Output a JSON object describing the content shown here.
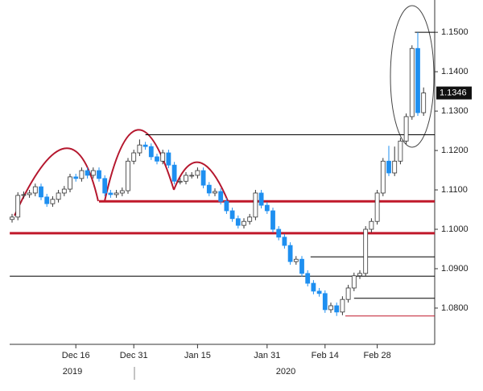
{
  "chart_data": {
    "type": "candlestick",
    "categories": [
      null,
      null,
      null,
      null,
      null,
      null,
      null,
      null,
      null,
      null,
      null,
      "Dec 16",
      null,
      null,
      null,
      null,
      null,
      null,
      null,
      null,
      null,
      "Dec 31",
      null,
      null,
      null,
      null,
      null,
      null,
      null,
      null,
      null,
      null,
      "Jan 15",
      null,
      null,
      null,
      null,
      null,
      null,
      null,
      null,
      null,
      null,
      null,
      "Jan 31",
      null,
      null,
      null,
      null,
      null,
      null,
      null,
      null,
      null,
      "Feb 14",
      null,
      null,
      null,
      null,
      null,
      null,
      null,
      null,
      "Feb 28",
      null,
      null,
      null,
      null,
      null,
      null,
      null,
      null
    ],
    "year_labels": [
      "2019",
      "2020"
    ],
    "open": [
      1.1025,
      1.1031,
      1.1086,
      1.1088,
      1.1092,
      1.1108,
      1.1082,
      1.1065,
      1.1076,
      1.1092,
      1.1102,
      1.1133,
      1.1129,
      1.1149,
      1.1137,
      1.1149,
      1.1129,
      1.1092,
      1.1088,
      1.1092,
      1.1098,
      1.1173,
      1.1194,
      1.1214,
      1.121,
      1.1184,
      1.1173,
      1.1194,
      1.1163,
      1.1122,
      1.1122,
      1.1137,
      1.1137,
      1.1149,
      1.1112,
      1.1092,
      1.1096,
      1.1071,
      1.1047,
      1.1027,
      1.101,
      1.102,
      1.1031,
      1.1092,
      1.1061,
      1.1047,
      1.1,
      1.098,
      1.0959,
      1.0918,
      1.0924,
      1.0888,
      1.0863,
      1.0843,
      1.0837,
      1.0796,
      1.0806,
      1.079,
      1.0822,
      1.0851,
      1.0882,
      1.0888,
      1.1,
      1.102,
      1.1092,
      1.1173,
      1.1143,
      1.1173,
      1.1224,
      1.1286,
      1.1459,
      1.1296
    ],
    "high": [
      1.1039,
      1.1094,
      1.1096,
      1.11,
      1.1116,
      1.1116,
      1.109,
      1.1084,
      1.11,
      1.111,
      1.1141,
      1.1141,
      1.1157,
      1.1157,
      1.1157,
      1.1157,
      1.1137,
      1.11,
      1.11,
      1.1106,
      1.1181,
      1.1202,
      1.1228,
      1.1222,
      1.1218,
      1.1192,
      1.1202,
      1.1202,
      1.1171,
      1.113,
      1.1145,
      1.1145,
      1.1157,
      1.1157,
      1.112,
      1.1104,
      1.1104,
      1.1079,
      1.1055,
      1.1035,
      1.1028,
      1.1039,
      1.11,
      1.11,
      1.1069,
      1.1055,
      1.1008,
      1.0988,
      1.0967,
      1.0932,
      1.0932,
      1.0896,
      1.0871,
      1.0851,
      1.0845,
      1.0814,
      1.0814,
      1.083,
      1.0859,
      1.089,
      1.0896,
      1.1008,
      1.1028,
      1.11,
      1.1181,
      1.1212,
      1.121,
      1.1232,
      1.1294,
      1.1467,
      1.15,
      1.136
    ],
    "low": [
      1.1017,
      1.1023,
      1.1078,
      1.108,
      1.1084,
      1.1074,
      1.1057,
      1.1057,
      1.1068,
      1.1084,
      1.1094,
      1.1121,
      1.1121,
      1.1129,
      1.1129,
      1.1121,
      1.1084,
      1.108,
      1.108,
      1.1084,
      1.109,
      1.1165,
      1.1186,
      1.1202,
      1.1176,
      1.1165,
      1.1165,
      1.1155,
      1.1114,
      1.1114,
      1.1114,
      1.1129,
      1.1129,
      1.1104,
      1.1084,
      1.1084,
      1.1063,
      1.1039,
      1.1019,
      1.1002,
      1.1002,
      1.1012,
      1.1023,
      1.1053,
      1.1039,
      1.0992,
      1.0972,
      1.0951,
      1.091,
      1.091,
      1.088,
      1.0855,
      1.0835,
      1.0829,
      1.0788,
      1.0788,
      1.078,
      1.0782,
      1.0814,
      1.0843,
      1.0874,
      1.088,
      1.0992,
      1.1012,
      1.1084,
      1.1135,
      1.1135,
      1.1165,
      1.1216,
      1.1278,
      1.1288,
      1.1288
    ],
    "close": [
      1.1031,
      1.1086,
      1.1088,
      1.1092,
      1.1108,
      1.1082,
      1.1065,
      1.1076,
      1.1092,
      1.1102,
      1.1133,
      1.1129,
      1.1149,
      1.1137,
      1.1149,
      1.1129,
      1.1092,
      1.1088,
      1.1092,
      1.1098,
      1.1173,
      1.1194,
      1.1214,
      1.121,
      1.1184,
      1.1173,
      1.1194,
      1.1163,
      1.1122,
      1.1122,
      1.1137,
      1.1137,
      1.1149,
      1.1112,
      1.1092,
      1.1096,
      1.1071,
      1.1047,
      1.1027,
      1.101,
      1.102,
      1.1031,
      1.1092,
      1.1061,
      1.1047,
      1.1,
      1.098,
      1.0959,
      1.0918,
      1.0924,
      1.0888,
      1.0863,
      1.0843,
      1.0837,
      1.0796,
      1.0806,
      1.079,
      1.0822,
      1.0851,
      1.0882,
      1.0888,
      1.1,
      1.102,
      1.1092,
      1.1173,
      1.1143,
      1.1173,
      1.1224,
      1.1286,
      1.1459,
      1.1296,
      1.1346
    ],
    "up_color": "#ffffff",
    "down_color": "#1e8ff0",
    "levels": [
      {
        "value": 1.124,
        "color": "#000000"
      },
      {
        "value": 1.1071,
        "color": "#c0182a"
      },
      {
        "value": 1.099,
        "color": "#c0182a"
      },
      {
        "value": 1.0881,
        "color": "#000000"
      },
      {
        "value": 1.093,
        "color": "#000000"
      },
      {
        "value": 1.0825,
        "color": "#000000"
      },
      {
        "value": 1.078,
        "color": "#c0182a"
      },
      {
        "value": 1.15,
        "color": "#000000"
      }
    ],
    "last_price": {
      "value": 1.1346,
      "label": "1.1346"
    },
    "ylim": [
      1.0708,
      1.1582
    ],
    "yticks": [
      {
        "value": 1.08,
        "label": "1.0800"
      },
      {
        "value": 1.09,
        "label": "1.0900"
      },
      {
        "value": 1.1,
        "label": "1.1000"
      },
      {
        "value": 1.11,
        "label": "1.1100"
      },
      {
        "value": 1.12,
        "label": "1.1200"
      },
      {
        "value": 1.13,
        "label": "1.1300"
      },
      {
        "value": 1.14,
        "label": "1.1400"
      },
      {
        "value": 1.15,
        "label": "1.1500"
      }
    ]
  }
}
